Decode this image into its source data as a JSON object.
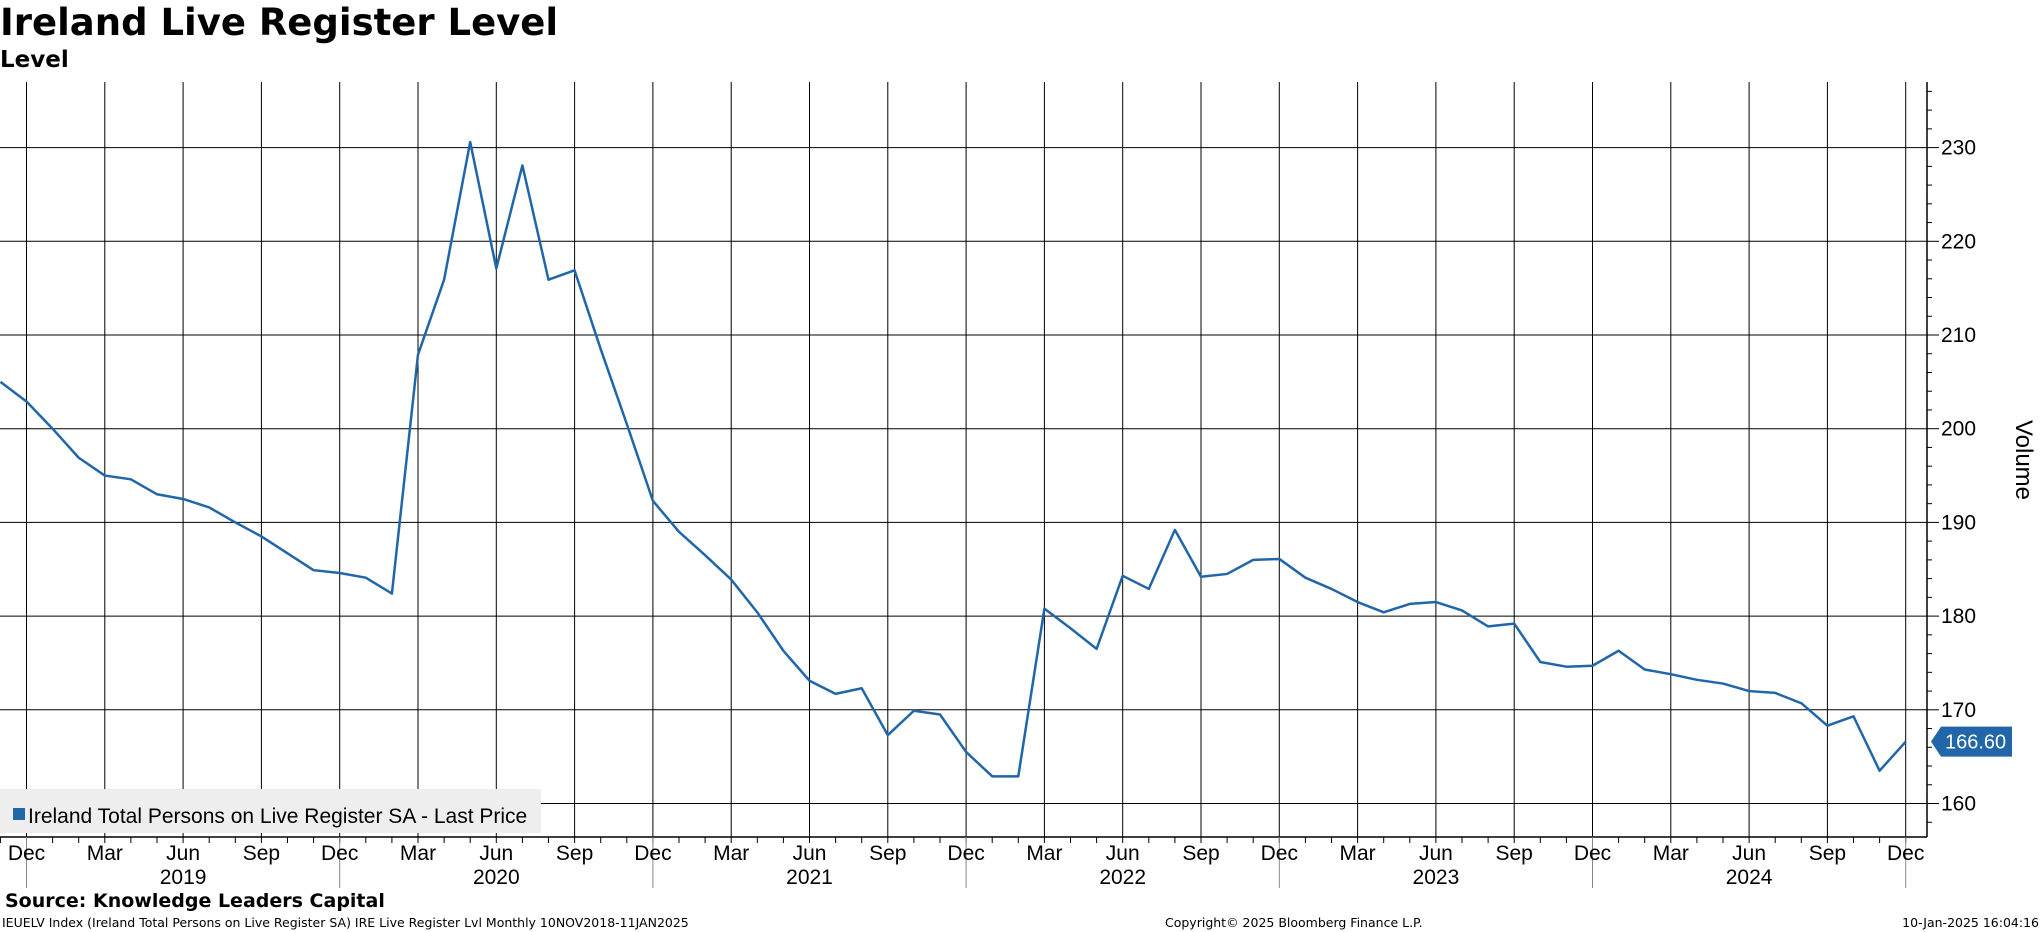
{
  "header": {
    "title": "Ireland Live Register Level",
    "subtitle": "Level"
  },
  "footer": {
    "source": "Source: Knowledge Leaders Capital",
    "index_info": "IEUELV Index (Ireland Total Persons on Live Register SA) IRE Live Register Lvl  Monthly 10NOV2018-11JAN2025",
    "copyright": "Copyright© 2025 Bloomberg Finance L.P.",
    "timestamp": "10-Jan-2025 16:04:16"
  },
  "chart_data": {
    "type": "line",
    "title": "Ireland Live Register Level",
    "subtitle": "Level",
    "ylabel": "Volume",
    "ylim": [
      156,
      237
    ],
    "yticks": [
      160,
      170,
      180,
      190,
      200,
      210,
      220,
      230
    ],
    "y_axis_side": "right",
    "grid": true,
    "legend_position": "bottom-left",
    "line_color": "#2066a8",
    "month_labels": [
      "Dec",
      "Mar",
      "Jun",
      "Sep",
      "Dec",
      "Mar",
      "Jun",
      "Sep",
      "Dec",
      "Mar",
      "Jun",
      "Sep",
      "Dec",
      "Mar",
      "Jun",
      "Sep",
      "Dec",
      "Mar",
      "Jun",
      "Sep",
      "Dec",
      "Mar",
      "Jun",
      "Sep",
      "Dec"
    ],
    "year_labels": [
      {
        "label": "2019",
        "month": "2019-06"
      },
      {
        "label": "2020",
        "month": "2020-06"
      },
      {
        "label": "2021",
        "month": "2021-06"
      },
      {
        "label": "2022",
        "month": "2022-06"
      },
      {
        "label": "2023",
        "month": "2023-06"
      },
      {
        "label": "2024",
        "month": "2024-06"
      }
    ],
    "last_value_label": "166.60",
    "series": [
      {
        "name": "Ireland Total Persons on Live Register SA - Last Price",
        "x": [
          "2018-11",
          "2018-12",
          "2019-01",
          "2019-02",
          "2019-03",
          "2019-04",
          "2019-05",
          "2019-06",
          "2019-07",
          "2019-08",
          "2019-09",
          "2019-10",
          "2019-11",
          "2019-12",
          "2020-01",
          "2020-02",
          "2020-03",
          "2020-04",
          "2020-05",
          "2020-06",
          "2020-07",
          "2020-08",
          "2020-09",
          "2020-10",
          "2020-11",
          "2020-12",
          "2021-01",
          "2021-02",
          "2021-03",
          "2021-04",
          "2021-05",
          "2021-06",
          "2021-07",
          "2021-08",
          "2021-09",
          "2021-10",
          "2021-11",
          "2021-12",
          "2022-01",
          "2022-02",
          "2022-03",
          "2022-04",
          "2022-05",
          "2022-06",
          "2022-07",
          "2022-08",
          "2022-09",
          "2022-10",
          "2022-11",
          "2022-12",
          "2023-01",
          "2023-02",
          "2023-03",
          "2023-04",
          "2023-05",
          "2023-06",
          "2023-07",
          "2023-08",
          "2023-09",
          "2023-10",
          "2023-11",
          "2023-12",
          "2024-01",
          "2024-02",
          "2024-03",
          "2024-04",
          "2024-05",
          "2024-06",
          "2024-07",
          "2024-08",
          "2024-09",
          "2024-10",
          "2024-11",
          "2024-12"
        ],
        "values": [
          205.0,
          202.9,
          200.0,
          196.9,
          195.0,
          194.6,
          193.0,
          192.5,
          191.6,
          190.0,
          188.5,
          186.7,
          184.9,
          184.6,
          184.1,
          182.4,
          207.9,
          215.9,
          230.6,
          217.1,
          228.1,
          215.9,
          216.9,
          208.5,
          200.5,
          192.3,
          189.0,
          186.5,
          183.9,
          180.4,
          176.3,
          173.1,
          171.7,
          172.3,
          167.3,
          169.9,
          169.5,
          165.5,
          162.9,
          162.9,
          180.8,
          178.7,
          176.5,
          184.3,
          182.9,
          189.2,
          184.2,
          184.5,
          186.0,
          186.1,
          184.1,
          182.9,
          181.5,
          180.4,
          181.3,
          181.5,
          180.6,
          178.9,
          179.2,
          175.1,
          174.6,
          174.7,
          176.3,
          174.3,
          173.8,
          173.2,
          172.8,
          172.0,
          171.8,
          170.7,
          168.3,
          169.3,
          163.5,
          166.6
        ]
      }
    ]
  }
}
